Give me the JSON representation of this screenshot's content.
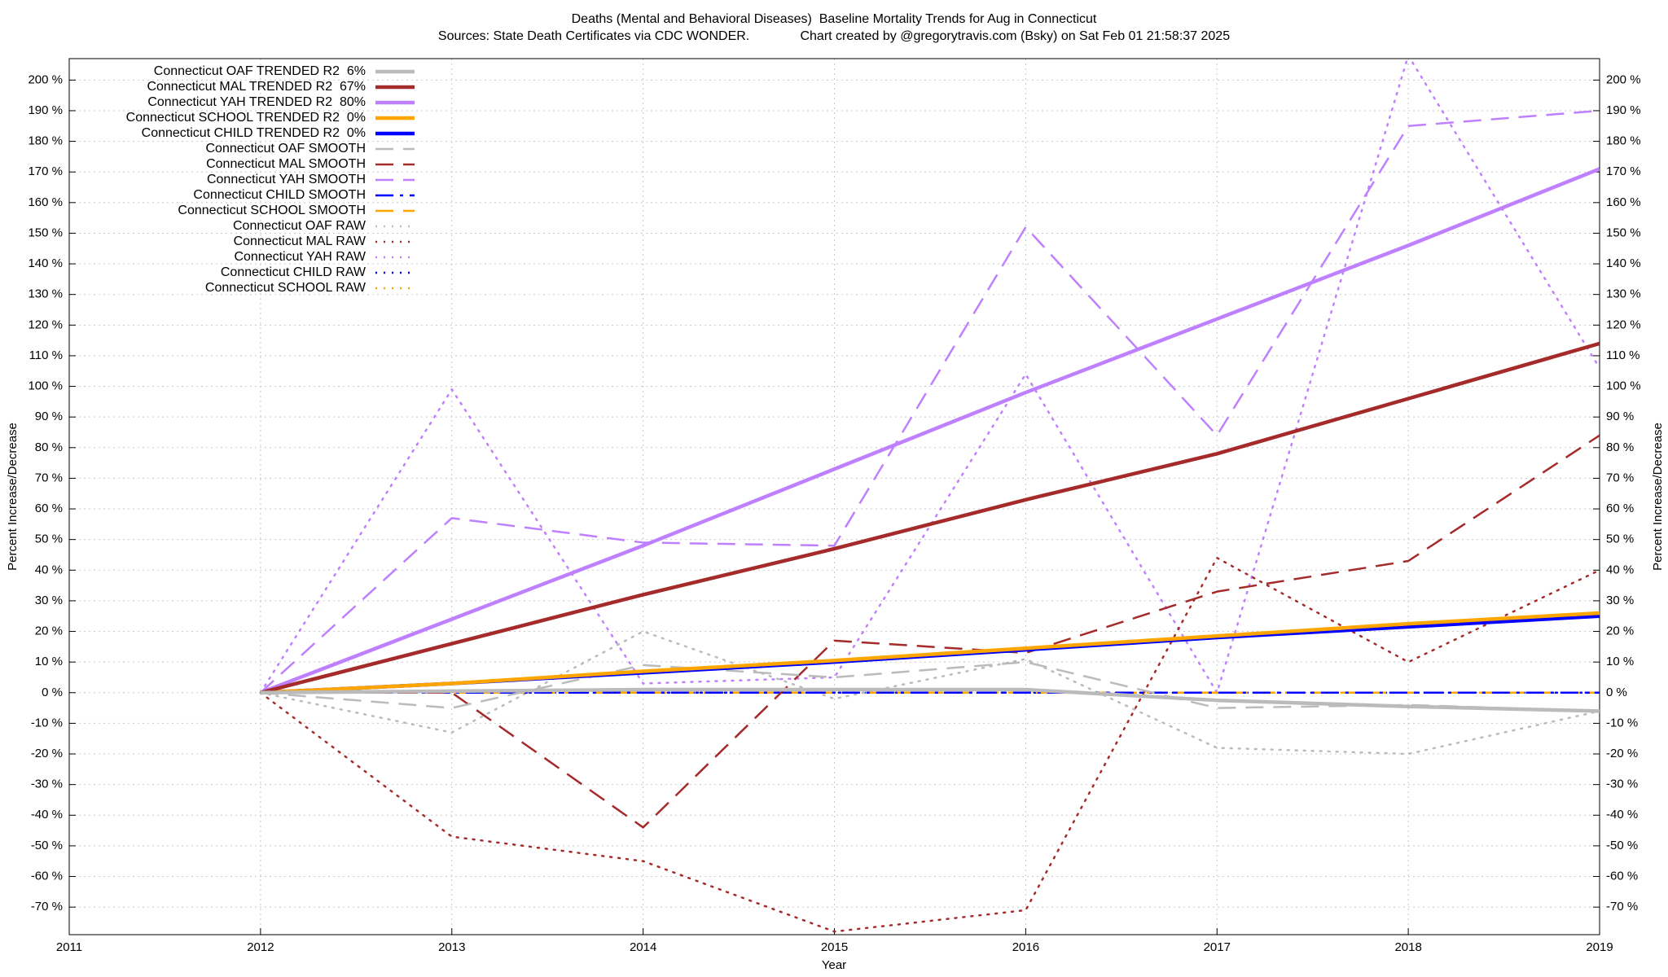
{
  "chart_data": {
    "type": "line",
    "title": "Deaths (Mental and Behavioral Diseases)  Baseline Mortality Trends for Aug in Connecticut",
    "subtitle": "Sources: State Death Certificates via CDC WONDER.              Chart created by @gregorytravis.com (Bsky) on Sat Feb 01 21:58:37 2025",
    "x_label": "Year",
    "y_label": "Percent Increase/Decrease",
    "xlim": [
      2011,
      2019
    ],
    "xticks": [
      2011,
      2012,
      2013,
      2014,
      2015,
      2016,
      2017,
      2018,
      2019
    ],
    "ylim": [
      -79,
      207
    ],
    "yticks": [
      {
        "value": -70,
        "label": "-70 %"
      },
      {
        "value": -60,
        "label": "-60 %"
      },
      {
        "value": -50,
        "label": "-50 %"
      },
      {
        "value": -40,
        "label": "-40 %"
      },
      {
        "value": -30,
        "label": "-30 %"
      },
      {
        "value": -20,
        "label": "-20 %"
      },
      {
        "value": -10,
        "label": "-10 %"
      },
      {
        "value": 0,
        "label": "0 %"
      },
      {
        "value": 10,
        "label": "10 %"
      },
      {
        "value": 20,
        "label": "20 %"
      },
      {
        "value": 30,
        "label": "30 %"
      },
      {
        "value": 40,
        "label": "40 %"
      },
      {
        "value": 50,
        "label": "50 %"
      },
      {
        "value": 60,
        "label": "60 %"
      },
      {
        "value": 70,
        "label": "70 %"
      },
      {
        "value": 80,
        "label": "80 %"
      },
      {
        "value": 90,
        "label": "90 %"
      },
      {
        "value": 100,
        "label": "100 %"
      },
      {
        "value": 110,
        "label": "110 %"
      },
      {
        "value": 120,
        "label": "120 %"
      },
      {
        "value": 130,
        "label": "130 %"
      },
      {
        "value": 140,
        "label": "140 %"
      },
      {
        "value": 150,
        "label": "150 %"
      },
      {
        "value": 160,
        "label": "160 %"
      },
      {
        "value": 170,
        "label": "170 %"
      },
      {
        "value": 180,
        "label": "180 %"
      },
      {
        "value": 190,
        "label": "190 %"
      },
      {
        "value": 200,
        "label": "200 %"
      }
    ],
    "grid": true,
    "legend": "upper left",
    "x": [
      2012,
      2013,
      2014,
      2015,
      2016,
      2017,
      2018,
      2019
    ],
    "series": [
      {
        "name": "Connecticut OAF TRENDED R2  6%",
        "color": "#bbbbbb",
        "style": "solid",
        "values": [
          0,
          0.5,
          1,
          1,
          1,
          -2.5,
          -4.5,
          -6
        ]
      },
      {
        "name": "Connecticut MAL TRENDED R2  67%",
        "color": "#a52a2a",
        "style": "solid",
        "values": [
          0,
          16,
          32,
          47,
          63,
          78,
          96,
          114
        ]
      },
      {
        "name": "Connecticut YAH TRENDED R2  80%",
        "color": "#bf80ff",
        "style": "solid",
        "values": [
          0,
          24,
          48,
          73,
          98,
          122,
          146,
          171
        ]
      },
      {
        "name": "Connecticut SCHOOL TRENDED R2  0%",
        "color": "#ffa500",
        "style": "solid",
        "values": [
          0,
          3,
          7,
          10.5,
          14.5,
          18.5,
          22.5,
          26
        ]
      },
      {
        "name": "Connecticut CHILD TRENDED R2  0%",
        "color": "#0000ff",
        "style": "solid",
        "values": [
          0,
          3,
          6.5,
          10,
          14,
          18,
          21.5,
          25
        ]
      },
      {
        "name": "Connecticut OAF SMOOTH",
        "color": "#bbbbbb",
        "style": "dashed",
        "values": [
          0,
          -5,
          9,
          5,
          10,
          -5,
          -4,
          -6
        ]
      },
      {
        "name": "Connecticut MAL SMOOTH",
        "color": "#a52a2a",
        "style": "dashed",
        "values": [
          0,
          0,
          -44,
          17,
          13,
          33,
          43,
          84
        ]
      },
      {
        "name": "Connecticut YAH SMOOTH",
        "color": "#bf80ff",
        "style": "dashed",
        "values": [
          0,
          57,
          49,
          48,
          152,
          84,
          185,
          190
        ]
      },
      {
        "name": "Connecticut CHILD SMOOTH",
        "color": "#0000ff",
        "style": "dashdot",
        "values": [
          0,
          0,
          0,
          0,
          0,
          0,
          0,
          0
        ]
      },
      {
        "name": "Connecticut SCHOOL SMOOTH",
        "color": "#ffa500",
        "style": "dashed",
        "values": [
          0,
          0,
          0,
          0,
          0,
          0,
          0,
          0
        ]
      },
      {
        "name": "Connecticut OAF RAW",
        "color": "#bbbbbb",
        "style": "dotted",
        "values": [
          0,
          -13,
          20,
          -2,
          11,
          -18,
          -20,
          -6
        ]
      },
      {
        "name": "Connecticut MAL RAW",
        "color": "#a52a2a",
        "style": "dotted",
        "values": [
          0,
          -47,
          -55,
          -78,
          -71,
          44,
          10,
          40
        ]
      },
      {
        "name": "Connecticut YAH RAW",
        "color": "#bf80ff",
        "style": "dotted",
        "values": [
          0,
          99,
          3,
          5,
          104,
          0,
          208,
          106
        ]
      },
      {
        "name": "Connecticut CHILD RAW",
        "color": "#0000ff",
        "style": "dotted",
        "values": [
          0,
          0,
          0,
          0,
          0,
          0,
          0,
          0
        ]
      },
      {
        "name": "Connecticut SCHOOL RAW",
        "color": "#ffa500",
        "style": "dotted",
        "values": [
          0,
          0,
          0,
          0,
          0,
          0,
          0,
          0
        ]
      }
    ]
  }
}
